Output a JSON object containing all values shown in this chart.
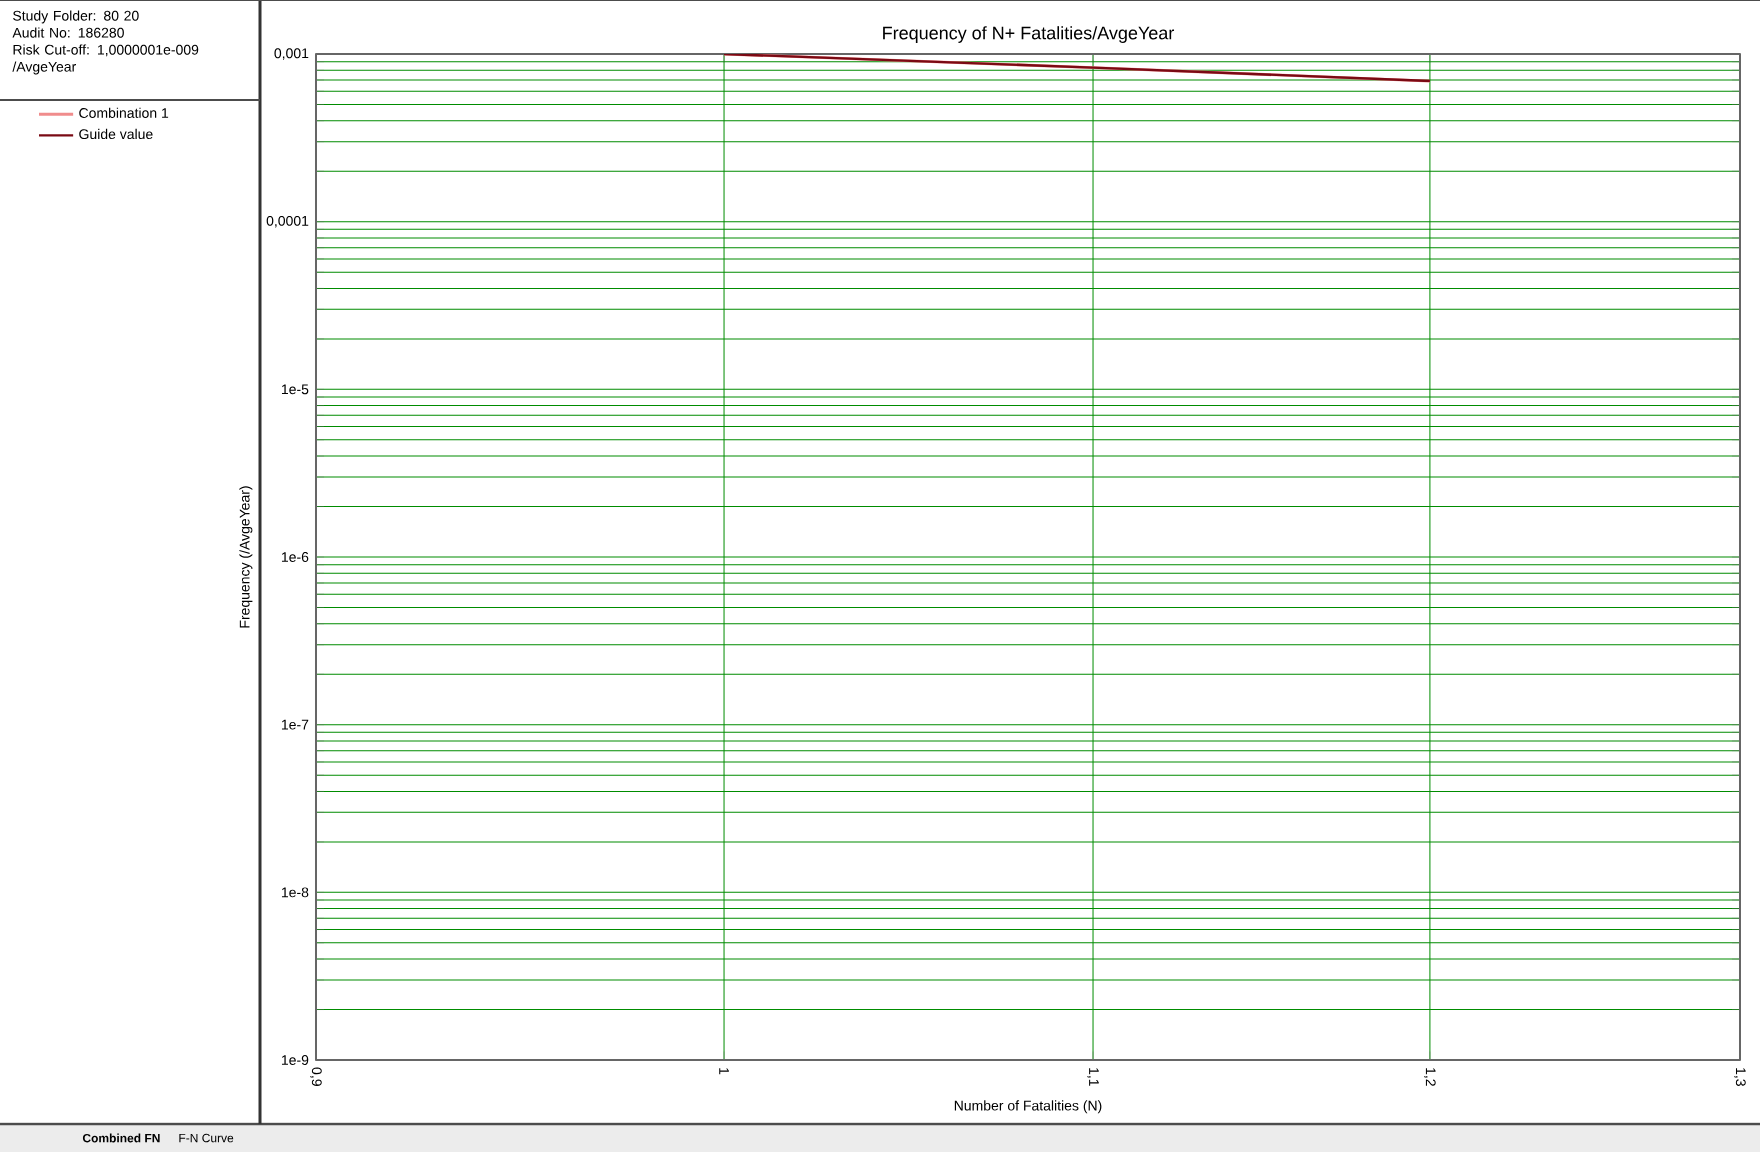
{
  "chart_data": {
    "type": "line",
    "title": "Frequency of N+ Fatalities/AvgeYear",
    "xlabel": "Number of Fatalities (N)",
    "ylabel": "Frequency (/AvgeYear)",
    "log": "xy",
    "grid": true,
    "legend": "left",
    "marker": "none",
    "line_style": "solid",
    "xlim": [
      0.9,
      1.3
    ],
    "ylim": [
      1e-09,
      0.001
    ],
    "xticks": [
      {
        "value": 0.9,
        "label": "0,9"
      },
      {
        "value": 1,
        "label": "1"
      },
      {
        "value": 1.1,
        "label": "1,1"
      },
      {
        "value": 1.2,
        "label": "1,2"
      },
      {
        "value": 1.3,
        "label": "1,3"
      }
    ],
    "yticks": [
      {
        "value": 1e-09,
        "label": "1e-9"
      },
      {
        "value": 2e-09,
        "label": null
      },
      {
        "value": 3e-09,
        "label": null
      },
      {
        "value": 4e-09,
        "label": null
      },
      {
        "value": 5e-09,
        "label": null
      },
      {
        "value": 6e-09,
        "label": null
      },
      {
        "value": 7e-09,
        "label": null
      },
      {
        "value": 8e-09,
        "label": null
      },
      {
        "value": 9e-09,
        "label": null
      },
      {
        "value": 1e-08,
        "label": "1e-8"
      },
      {
        "value": 2e-08,
        "label": null
      },
      {
        "value": 3e-08,
        "label": null
      },
      {
        "value": 4e-08,
        "label": null
      },
      {
        "value": 5e-08,
        "label": null
      },
      {
        "value": 6e-08,
        "label": null
      },
      {
        "value": 7e-08,
        "label": null
      },
      {
        "value": 8e-08,
        "label": null
      },
      {
        "value": 9e-08,
        "label": null
      },
      {
        "value": 1e-07,
        "label": "1e-7"
      },
      {
        "value": 2e-07,
        "label": null
      },
      {
        "value": 3e-07,
        "label": null
      },
      {
        "value": 4e-07,
        "label": null
      },
      {
        "value": 5e-07,
        "label": null
      },
      {
        "value": 6e-07,
        "label": null
      },
      {
        "value": 7e-07,
        "label": null
      },
      {
        "value": 8e-07,
        "label": null
      },
      {
        "value": 9e-07,
        "label": null
      },
      {
        "value": 1e-06,
        "label": "1e-6"
      },
      {
        "value": 2e-06,
        "label": null
      },
      {
        "value": 3e-06,
        "label": null
      },
      {
        "value": 4e-06,
        "label": null
      },
      {
        "value": 5e-06,
        "label": null
      },
      {
        "value": 6e-06,
        "label": null
      },
      {
        "value": 7e-06,
        "label": null
      },
      {
        "value": 8e-06,
        "label": null
      },
      {
        "value": 9e-06,
        "label": null
      },
      {
        "value": 1e-05,
        "label": "1e-5"
      },
      {
        "value": 2e-05,
        "label": null
      },
      {
        "value": 3e-05,
        "label": null
      },
      {
        "value": 4e-05,
        "label": null
      },
      {
        "value": 5e-05,
        "label": null
      },
      {
        "value": 6e-05,
        "label": null
      },
      {
        "value": 7e-05,
        "label": null
      },
      {
        "value": 8e-05,
        "label": null
      },
      {
        "value": 9e-05,
        "label": null
      },
      {
        "value": 0.0001,
        "label": "0,0001"
      },
      {
        "value": 0.0002,
        "label": null
      },
      {
        "value": 0.0003,
        "label": null
      },
      {
        "value": 0.0004,
        "label": null
      },
      {
        "value": 0.0005,
        "label": null
      },
      {
        "value": 0.0006,
        "label": null
      },
      {
        "value": 0.0007,
        "label": null
      },
      {
        "value": 0.0008,
        "label": null
      },
      {
        "value": 0.0009,
        "label": null
      },
      {
        "value": 0.001,
        "label": "0,001"
      }
    ],
    "x": [
      1,
      1.1,
      1.2
    ],
    "series": [
      {
        "name": "Combination 1",
        "color": "#f08c8c",
        "values": [
          0.001,
          0.00083,
          0.00069
        ]
      },
      {
        "name": "Guide value",
        "color": "#7a0a14",
        "values": [
          0.001,
          0.00083,
          0.00069
        ]
      }
    ],
    "annotations": [
      "Study Folder: 80 20",
      "Audit No: 186280",
      "Risk Cut-off: 1,0000001e-009 /AvgeYear",
      "Combined FN",
      "F-N Curve"
    ]
  }
}
